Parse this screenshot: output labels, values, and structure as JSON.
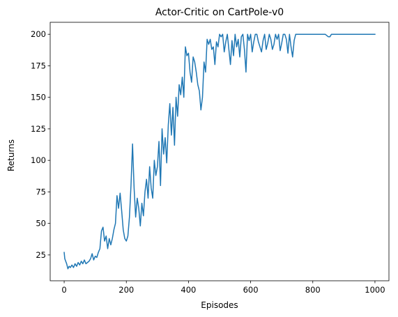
{
  "chart_data": {
    "type": "line",
    "title": "Actor-Critic on CartPole-v0",
    "xlabel": "Episodes",
    "ylabel": "Returns",
    "xlim": [
      -45,
      1045
    ],
    "ylim": [
      4.5,
      209.5
    ],
    "xticks": [
      0,
      200,
      400,
      600,
      800,
      1000
    ],
    "yticks": [
      25,
      50,
      75,
      100,
      125,
      150,
      175,
      200
    ],
    "grid": false,
    "color": "#1f77b4",
    "series": [
      {
        "x": [
          0,
          2,
          5,
          8,
          12,
          16,
          20,
          25,
          30,
          35,
          40,
          45,
          50,
          55,
          60,
          65,
          70,
          75,
          80,
          85,
          90,
          95,
          100,
          105,
          110,
          115,
          120,
          125,
          130,
          135,
          140,
          145,
          150,
          155,
          160,
          165,
          170,
          175,
          180,
          185,
          190,
          195,
          200,
          205,
          210,
          215,
          220,
          225,
          230,
          235,
          240,
          245,
          250,
          255,
          260,
          265,
          270,
          275,
          280,
          285,
          290,
          295,
          300,
          305,
          310,
          315,
          320,
          325,
          330,
          335,
          340,
          345,
          350,
          355,
          360,
          365,
          370,
          375,
          380,
          385,
          390,
          395,
          400,
          405,
          410,
          415,
          420,
          425,
          430,
          435,
          440,
          445,
          450,
          455,
          460,
          465,
          470,
          475,
          480,
          485,
          490,
          495,
          500,
          505,
          510,
          515,
          520,
          525,
          530,
          535,
          540,
          545,
          550,
          555,
          560,
          565,
          570,
          575,
          580,
          585,
          590,
          595,
          600,
          605,
          610,
          615,
          620,
          625,
          630,
          635,
          640,
          645,
          650,
          655,
          660,
          665,
          670,
          675,
          680,
          685,
          690,
          695,
          700,
          705,
          710,
          715,
          720,
          725,
          730,
          735,
          740,
          745,
          750,
          760,
          780,
          800,
          820,
          840,
          850,
          855,
          860,
          870,
          900,
          950,
          1000
        ],
        "y": [
          27,
          22,
          20,
          18,
          14,
          16,
          15,
          17,
          15,
          18,
          16,
          19,
          17,
          20,
          18,
          21,
          18,
          19,
          20,
          22,
          26,
          21,
          24,
          23,
          27,
          30,
          44,
          47,
          36,
          40,
          30,
          38,
          33,
          38,
          45,
          50,
          72,
          62,
          74,
          60,
          45,
          38,
          36,
          40,
          55,
          80,
          113,
          78,
          55,
          70,
          62,
          48,
          66,
          56,
          75,
          85,
          70,
          95,
          78,
          70,
          100,
          88,
          95,
          115,
          80,
          125,
          105,
          118,
          98,
          128,
          145,
          120,
          142,
          112,
          150,
          135,
          160,
          152,
          166,
          150,
          190,
          183,
          185,
          170,
          162,
          182,
          178,
          170,
          160,
          155,
          140,
          150,
          178,
          170,
          196,
          192,
          196,
          188,
          190,
          176,
          194,
          190,
          200,
          198,
          200,
          186,
          194,
          200,
          188,
          176,
          195,
          183,
          200,
          190,
          196,
          182,
          198,
          200,
          188,
          170,
          200,
          195,
          200,
          186,
          194,
          200,
          200,
          194,
          190,
          186,
          195,
          200,
          188,
          193,
          200,
          196,
          188,
          192,
          200,
          196,
          200,
          187,
          193,
          200,
          200,
          196,
          185,
          200,
          190,
          182,
          195,
          200,
          200,
          200,
          200,
          200,
          200,
          200,
          198,
          198,
          200,
          200,
          200,
          200,
          200
        ]
      }
    ]
  }
}
